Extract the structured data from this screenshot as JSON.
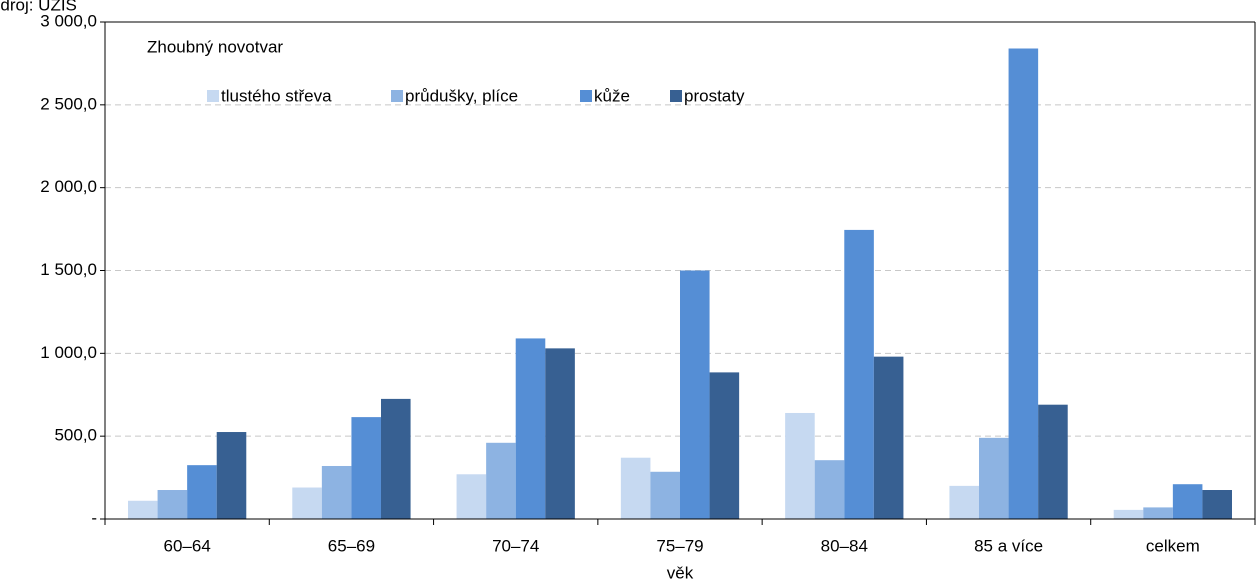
{
  "chart_data": {
    "type": "bar",
    "source": "Zdroj: ÚZIS",
    "legend_title": "Zhoubný novotvar",
    "xlabel": "věk",
    "categories": [
      "60–64",
      "65–69",
      "70–74",
      "75–79",
      "80–84",
      "85 a více",
      "celkem"
    ],
    "series": [
      {
        "name": "tlustého střeva",
        "color": "#c6d9f1",
        "values": [
          110,
          190,
          270,
          370,
          640,
          200,
          55
        ]
      },
      {
        "name": "průdušky, plíce",
        "color": "#8db3e2",
        "values": [
          175,
          320,
          460,
          285,
          355,
          490,
          70
        ]
      },
      {
        "name": "kůže",
        "color": "#558ed5",
        "values": [
          325,
          615,
          1090,
          1500,
          1745,
          2840,
          210
        ]
      },
      {
        "name": "prostaty",
        "color": "#376092",
        "values": [
          525,
          725,
          1030,
          885,
          980,
          690,
          175
        ]
      }
    ],
    "ylim": [
      0,
      3000
    ],
    "yticks": [
      {
        "value": 0,
        "label": "-"
      },
      {
        "value": 500,
        "label": "500,0"
      },
      {
        "value": 1000,
        "label": "1 000,0"
      },
      {
        "value": 1500,
        "label": "1 500,0"
      },
      {
        "value": 2000,
        "label": "2 000,0"
      },
      {
        "value": 2500,
        "label": "2 500,0"
      },
      {
        "value": 3000,
        "label": "3 000,0"
      }
    ],
    "grid": true
  }
}
